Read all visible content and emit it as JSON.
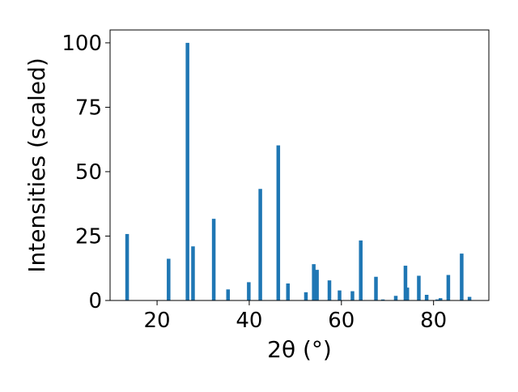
{
  "colors": {
    "bar": "#1f77b4",
    "axis": "#000000",
    "background": "#ffffff"
  },
  "chart_data": {
    "type": "bar",
    "title": "",
    "xlabel": "2θ (°)",
    "ylabel": "Intensities (scaled)",
    "xlim": [
      9.8,
      92.0
    ],
    "ylim": [
      0,
      105
    ],
    "x_ticks": [
      20,
      40,
      60,
      80
    ],
    "y_ticks": [
      0,
      25,
      50,
      75,
      100
    ],
    "grid": false,
    "legend": "none",
    "x": [
      13.5,
      22.5,
      26.6,
      27.8,
      32.3,
      35.4,
      39.9,
      42.4,
      46.3,
      48.4,
      52.3,
      54.0,
      54.7,
      57.4,
      59.6,
      62.4,
      64.2,
      67.5,
      69.0,
      71.8,
      73.9,
      74.3,
      76.8,
      78.5,
      80.8,
      81.5,
      83.2,
      86.1,
      87.8
    ],
    "y": [
      25.8,
      16.2,
      100.0,
      21.0,
      31.7,
      4.3,
      7.1,
      43.3,
      60.2,
      6.6,
      3.2,
      14.1,
      11.9,
      7.8,
      3.9,
      3.6,
      23.3,
      9.2,
      0.4,
      1.8,
      13.5,
      5.0,
      9.6,
      2.2,
      0.4,
      0.9,
      9.9,
      18.2,
      1.4
    ]
  }
}
